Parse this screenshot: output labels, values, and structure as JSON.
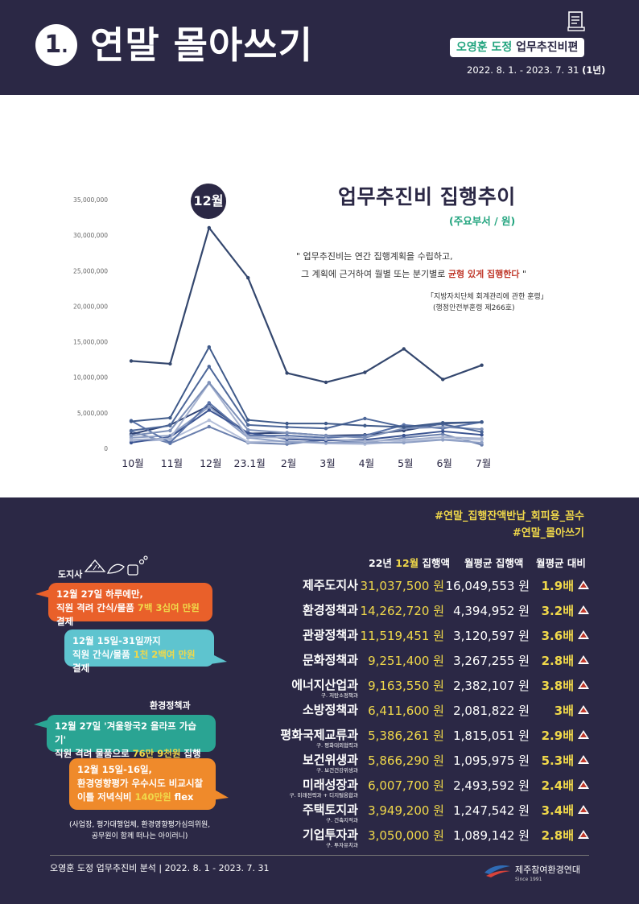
{
  "header": {
    "number": "1",
    "title": "연말 몰아쓰기",
    "badge_highlight": "오영훈 도정",
    "badge_rest": " 업무추진비편",
    "period_text": "2022. 8. 1. - 2023. 7. 31 ",
    "period_bold": "(1년)"
  },
  "chart_heading": {
    "title": "업무추진비 집행추이",
    "subtitle": "(주요부서 / 원)",
    "highlight_badge": "12월"
  },
  "quote": {
    "line1": "\" 업무추진비는 연간 집행계획을 수립하고,",
    "line2_a": "그 계획에 근거하여 월별 또는 분기별로 ",
    "line2_red": "균형 있게 집행한다",
    "line2_b": " \"",
    "ref1": "「지방자치단체 회계관리에 관한 훈령」",
    "ref2": "(행정안전부훈령 제266호)"
  },
  "chart_data": {
    "type": "line",
    "categories": [
      "10월",
      "11월",
      "12월",
      "23.1월",
      "2월",
      "3월",
      "4월",
      "5월",
      "6월",
      "7월"
    ],
    "ylim": [
      0,
      35000000
    ],
    "y_ticks": [
      "0",
      "5,000,000",
      "10,000,000",
      "15,000,000",
      "20,000,000",
      "25,000,000",
      "30,000,000",
      "35,000,000"
    ],
    "y_tick_values": [
      0,
      5000000,
      10000000,
      15000000,
      20000000,
      25000000,
      30000000,
      35000000
    ],
    "grid": false,
    "series": [
      {
        "color": "#34476e",
        "width": 2.2,
        "values": [
          12300000,
          11900000,
          31037500,
          24000000,
          10600000,
          9300000,
          10700000,
          14000000,
          9700000,
          11700000
        ]
      },
      {
        "color": "#3f5a8a",
        "width": 2,
        "values": [
          3800000,
          4300000,
          14262720,
          4000000,
          3500000,
          3500000,
          3200000,
          3000000,
          3600000,
          3700000
        ]
      },
      {
        "color": "#4d6799",
        "width": 2,
        "values": [
          2500000,
          3200000,
          11519451,
          3300000,
          3000000,
          2800000,
          4200000,
          3000000,
          3400000,
          2300000
        ]
      },
      {
        "color": "#7d90b8",
        "width": 2,
        "values": [
          1800000,
          2500000,
          9251400,
          2600000,
          2200000,
          1800000,
          1500000,
          2800000,
          3000000,
          2700000
        ]
      },
      {
        "color": "#a7b3d0",
        "width": 2,
        "values": [
          1200000,
          1400000,
          9163550,
          1600000,
          1500000,
          1300000,
          1000000,
          1200000,
          1600000,
          1400000
        ]
      },
      {
        "color": "#5a73a8",
        "width": 2,
        "values": [
          3900000,
          800000,
          6411600,
          1800000,
          1800000,
          1500000,
          1800000,
          3300000,
          2800000,
          3700000
        ]
      },
      {
        "color": "#3c5592",
        "width": 2,
        "values": [
          800000,
          1600000,
          5386261,
          2200000,
          1300000,
          1100000,
          1200000,
          1800000,
          2400000,
          1900000
        ]
      },
      {
        "color": "#8fa0c5",
        "width": 2,
        "values": [
          1500000,
          1800000,
          5866290,
          1500000,
          900000,
          800000,
          800000,
          800000,
          1200000,
          800000
        ]
      },
      {
        "color": "#2f4375",
        "width": 2,
        "values": [
          2000000,
          3300000,
          6007700,
          2100000,
          2200000,
          1800000,
          1900000,
          2500000,
          3500000,
          3700000
        ]
      },
      {
        "color": "#b5c0da",
        "width": 2,
        "values": [
          1000000,
          1200000,
          3949200,
          900000,
          1000000,
          700000,
          600000,
          1000000,
          1300000,
          1200000
        ]
      },
      {
        "color": "#6b80ae",
        "width": 2,
        "values": [
          2400000,
          700000,
          3050000,
          800000,
          600000,
          1200000,
          800000,
          1500000,
          2000000,
          500000
        ]
      }
    ]
  },
  "hashtags": [
    "#연말_집행잔액반납_회피용_꼼수",
    "#연말_몰아쓰기"
  ],
  "table": {
    "col1_prefix": "22년 ",
    "col1_highlight": "12월",
    "col1_suffix": " 집행액",
    "col2": "월평균 집행액",
    "col3": "월평균 대비",
    "rows": [
      {
        "dept": "제주도지사",
        "sub": "",
        "amount": "31,037,500 원",
        "avg": "16,049,553 원",
        "ratio": "1.9배"
      },
      {
        "dept": "환경정책과",
        "sub": "",
        "amount": "14,262,720 원",
        "avg": "4,394,952 원",
        "ratio": "3.2배"
      },
      {
        "dept": "관광정책과",
        "sub": "",
        "amount": "11,519,451 원",
        "avg": "3,120,597 원",
        "ratio": "3.6배"
      },
      {
        "dept": "문화정책과",
        "sub": "",
        "amount": "9,251,400 원",
        "avg": "3,267,255 원",
        "ratio": "2.8배"
      },
      {
        "dept": "에너지산업과",
        "sub": "구. 저탄소정책과",
        "amount": "9,163,550 원",
        "avg": "2,382,107 원",
        "ratio": "3.8배"
      },
      {
        "dept": "소방정책과",
        "sub": "",
        "amount": "6,411,600 원",
        "avg": "2,081,822 원",
        "ratio": "3배"
      },
      {
        "dept": "평화국제교류과",
        "sub": "구. 평화대외협력과",
        "amount": "5,386,261 원",
        "avg": "1,815,051 원",
        "ratio": "2.9배"
      },
      {
        "dept": "보건위생과",
        "sub": "구. 보건건강위생과",
        "amount": "5,866,290 원",
        "avg": "1,095,975 원",
        "ratio": "5.3배"
      },
      {
        "dept": "미래성장과",
        "sub": "구. 미래전략과 + 디지털융합과",
        "amount": "6,007,700 원",
        "avg": "2,493,592 원",
        "ratio": "2.4배"
      },
      {
        "dept": "주택토지과",
        "sub": "구. 건축지적과",
        "amount": "3,949,200 원",
        "avg": "1,247,542 원",
        "ratio": "3.4배"
      },
      {
        "dept": "기업투자과",
        "sub": "구. 투자유치과",
        "amount": "3,050,000 원",
        "avg": "1,089,142 원",
        "ratio": "2.8배"
      }
    ]
  },
  "side": {
    "label_governor": "도지사",
    "label_env": "환경정책과",
    "b1_l1": "12월 27일 하루에만,",
    "b1_l2a": "직원 격려 간식/물품 ",
    "b1_l2y": "7백 3십여 만원",
    "b1_l2b": " 결제",
    "b2_l1": "12월 15일-31일까지",
    "b2_l2a": "직원 간식/물품 ",
    "b2_l2y": "1천 2백여 만원",
    "b2_l2b": " 결제",
    "b3_l1": "12월 27일 '겨울왕국2 올라프 가습기'",
    "b3_l2a": "직원 격려 물품으로 ",
    "b3_l2y": "76만 9천원",
    "b3_l2b": " 집행",
    "b4_l1": "12월 15일-16일,",
    "b4_l2": "환경영향평가 우수시도 비교시찰",
    "b4_l3a": "이틀 저녁식비 ",
    "b4_l3y": "140만원",
    "b4_l3b": " flex",
    "note1": "(사업장, 평가대행업체, 환경영향평가심의위원,",
    "note2": "공무원이 함께 떠나는 아이러니)"
  },
  "footer": {
    "text": "오영훈 도정 업무추진비 분석 | 2022. 8. 1 - 2023. 7. 31",
    "logo": "제주참여환경연대",
    "since": "Since 1991"
  },
  "colors": {
    "navy": "#2b2845",
    "yellow": "#f0d84a",
    "green": "#21a47e",
    "red": "#c0392b",
    "orange": "#e9602a",
    "teal": "#5ec4cf",
    "emerald": "#2aa493",
    "amber": "#ef8a2b"
  }
}
